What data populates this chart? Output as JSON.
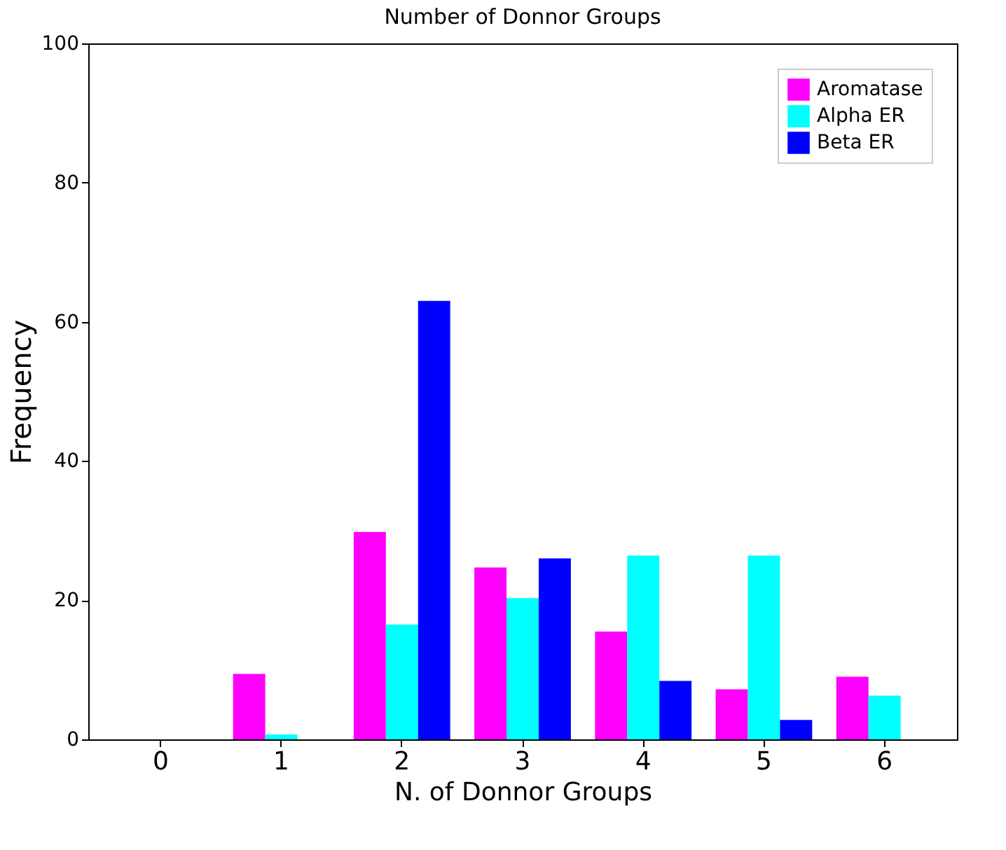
{
  "chart_data": {
    "type": "bar",
    "title": "Number of Donnor Groups",
    "xlabel": "N. of Donnor Groups",
    "ylabel": "Frequency",
    "categories": [
      "0",
      "1",
      "2",
      "3",
      "4",
      "5",
      "6"
    ],
    "series": [
      {
        "name": "Aromatase",
        "color": "#ff00ff",
        "values": [
          0,
          9.4,
          29.8,
          24.7,
          15.5,
          7.2,
          9.0
        ]
      },
      {
        "name": "Alpha ER",
        "color": "#00ffff",
        "values": [
          0,
          0.7,
          16.5,
          20.3,
          26.4,
          26.4,
          6.3
        ]
      },
      {
        "name": "Beta ER",
        "color": "#0000ff",
        "values": [
          0,
          0,
          63.0,
          26.0,
          8.4,
          2.8,
          0
        ]
      }
    ],
    "ylim": [
      0,
      100
    ],
    "yticks": [
      0,
      20,
      40,
      60,
      80,
      100
    ],
    "legend": "top right",
    "grid": false
  }
}
